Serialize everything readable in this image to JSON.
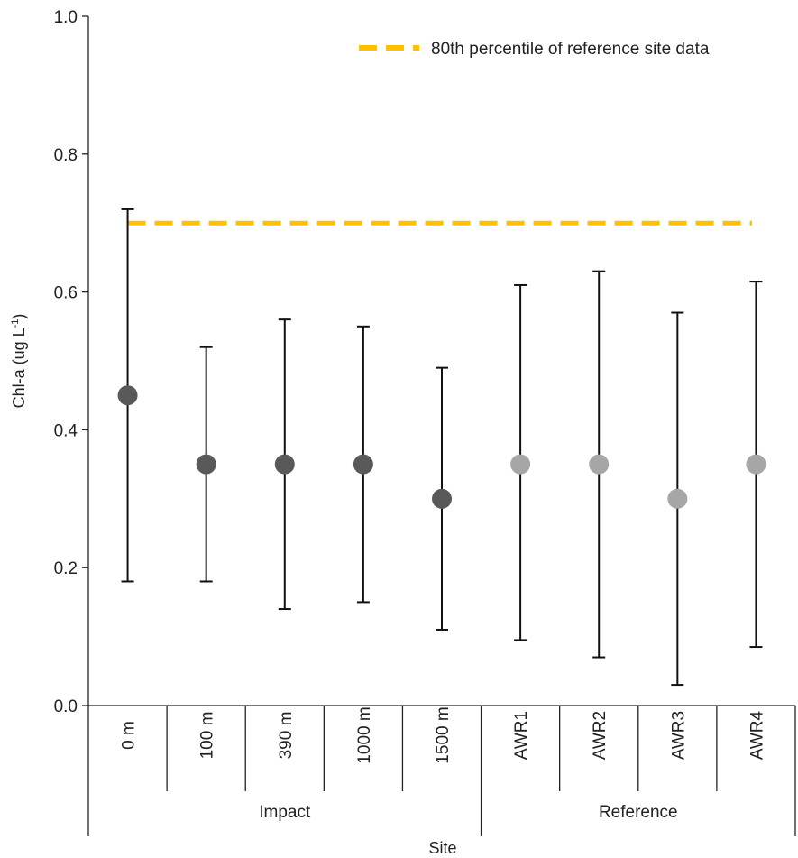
{
  "chart_data": {
    "type": "scatter",
    "title": "",
    "xlabel": "Site",
    "ylabel_main": "Chl-a (ug L",
    "ylabel_sup": "-1",
    "ylabel_close": ")",
    "ylim": [
      0,
      1.0
    ],
    "yticks": [
      "0.0",
      "0.2",
      "0.4",
      "0.6",
      "0.8",
      "1.0"
    ],
    "categories": [
      "0 m",
      "100 m",
      "390 m",
      "1000 m",
      "1500 m",
      "AWR1",
      "AWR2",
      "AWR3",
      "AWR4"
    ],
    "groups": [
      {
        "name": "Impact",
        "start": 0,
        "end": 4,
        "color": "#595959"
      },
      {
        "name": "Reference",
        "start": 5,
        "end": 8,
        "color": "#a6a6a6"
      }
    ],
    "means": [
      0.45,
      0.35,
      0.35,
      0.35,
      0.3,
      0.35,
      0.35,
      0.3,
      0.35
    ],
    "upper": [
      0.72,
      0.52,
      0.56,
      0.55,
      0.49,
      0.61,
      0.63,
      0.57,
      0.615
    ],
    "lower": [
      0.18,
      0.18,
      0.14,
      0.15,
      0.11,
      0.095,
      0.07,
      0.03,
      0.085
    ],
    "reference_line": {
      "value": 0.7,
      "label": "80th percentile of reference site data",
      "color": "#ffc000"
    },
    "legend_position": "top-right"
  }
}
